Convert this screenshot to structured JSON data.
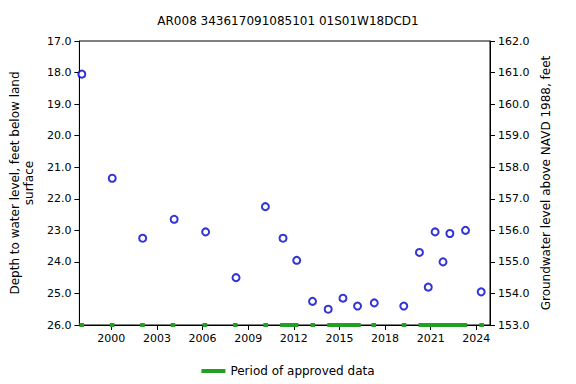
{
  "chart_data": {
    "type": "scatter",
    "title": "AR008 343617091085101 01S01W18DCD1",
    "y_label": "Depth to water level, feet below land\nsurface",
    "y2_label": "Groundwater level above NAVD 1988, feet",
    "x": [
      1998.06,
      2000.06,
      2002.06,
      2004.13,
      2006.2,
      2008.2,
      2010.13,
      2011.29,
      2012.19,
      2013.23,
      2014.26,
      2015.23,
      2016.19,
      2017.29,
      2019.23,
      2020.26,
      2020.84,
      2021.29,
      2021.81,
      2022.26,
      2023.29,
      2024.32
    ],
    "values": [
      18.05,
      21.35,
      23.25,
      22.65,
      23.05,
      24.5,
      22.25,
      23.25,
      23.95,
      25.25,
      25.5,
      25.15,
      25.4,
      25.3,
      25.4,
      23.7,
      24.8,
      23.05,
      24.0,
      23.1,
      23.0,
      24.95
    ],
    "color": "#0000cc",
    "marker": "circle",
    "xlim": [
      1997.9,
      2024.9
    ],
    "xticks": [
      2000,
      2003,
      2006,
      2009,
      2012,
      2015,
      2018,
      2021,
      2024
    ],
    "ylim": [
      26,
      17
    ],
    "yticks": [
      {
        "value": 17,
        "label": "17.0"
      },
      {
        "value": 18,
        "label": "18.0"
      },
      {
        "value": 19,
        "label": "19.0"
      },
      {
        "value": 20,
        "label": "20.0"
      },
      {
        "value": 21,
        "label": "21.0"
      },
      {
        "value": 22,
        "label": "22.0"
      },
      {
        "value": 23,
        "label": "23.0"
      },
      {
        "value": 24,
        "label": "24.0"
      },
      {
        "value": 25,
        "label": "25.0"
      },
      {
        "value": 26,
        "label": "26.0"
      }
    ],
    "y2lim": [
      153,
      162
    ],
    "y2ticks": [
      {
        "value": 153,
        "label": "153.0"
      },
      {
        "value": 154,
        "label": "154.0"
      },
      {
        "value": 155,
        "label": "155.0"
      },
      {
        "value": 156,
        "label": "156.0"
      },
      {
        "value": 157,
        "label": "157.0"
      },
      {
        "value": 158,
        "label": "158.0"
      },
      {
        "value": 159,
        "label": "159.0"
      },
      {
        "value": 160,
        "label": "160.0"
      },
      {
        "value": 161,
        "label": "161.0"
      },
      {
        "value": 162,
        "label": "162.0"
      }
    ],
    "grid": false,
    "legend": "bottom",
    "approved_periods": {
      "name": "Period of approved data",
      "color": "#22a022",
      "periods": [
        [
          1997.9,
          1998.2
        ],
        [
          1999.9,
          2000.2
        ],
        [
          2001.9,
          2002.2
        ],
        [
          2003.9,
          2004.2
        ],
        [
          2006.0,
          2006.3
        ],
        [
          2008.0,
          2008.3
        ],
        [
          2010.0,
          2010.3
        ],
        [
          2011.1,
          2012.3
        ],
        [
          2013.1,
          2013.4
        ],
        [
          2014.2,
          2016.4
        ],
        [
          2017.1,
          2017.4
        ],
        [
          2019.1,
          2019.4
        ],
        [
          2020.2,
          2023.4
        ],
        [
          2024.2,
          2024.5
        ]
      ]
    }
  }
}
